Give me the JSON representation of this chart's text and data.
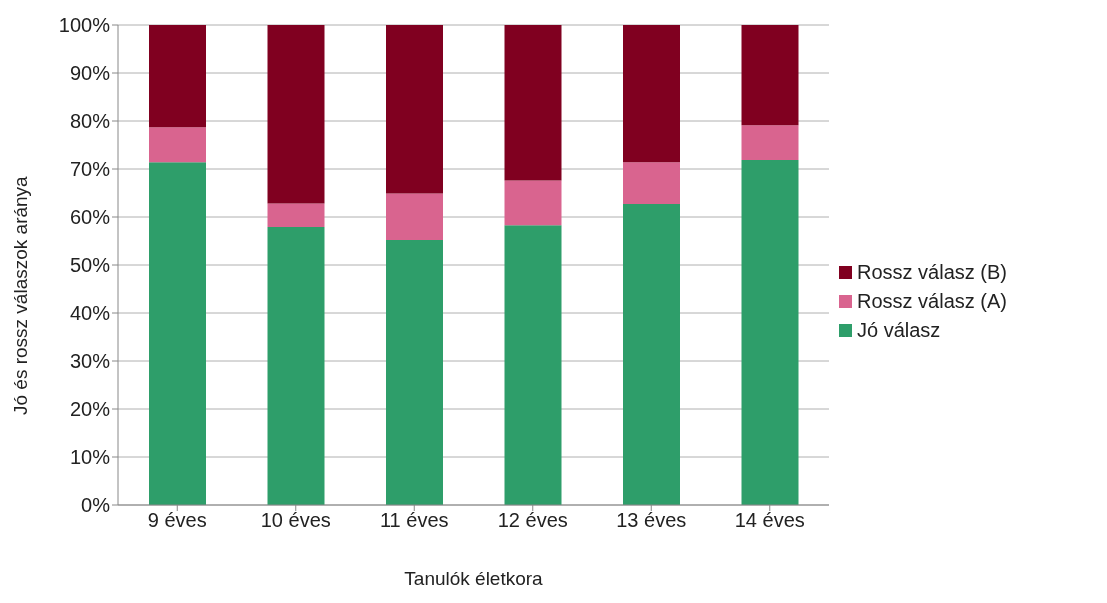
{
  "chart_data": {
    "type": "bar",
    "stacked": true,
    "xlabel": "Tanulók életkora",
    "ylabel": "Jó és rossz válaszok aránya",
    "categories": [
      "9 éves",
      "10 éves",
      "11 éves",
      "12 éves",
      "13 éves",
      "14 éves"
    ],
    "series": [
      {
        "name": "Jó válasz",
        "color": "#2e9e6a",
        "values": [
          71.4,
          57.9,
          55.2,
          58.3,
          62.7,
          71.9
        ]
      },
      {
        "name": "Rossz válasz (A)",
        "color": "#d9648f",
        "values": [
          7.3,
          4.9,
          9.7,
          9.3,
          8.7,
          7.2
        ]
      },
      {
        "name": "Rossz válasz (B)",
        "color": "#800020",
        "values": [
          21.3,
          37.2,
          35.1,
          32.4,
          28.6,
          20.9
        ]
      }
    ],
    "ylim": [
      0,
      100
    ],
    "yticks": [
      {
        "value": 0,
        "label": "0%"
      },
      {
        "value": 10,
        "label": "10%"
      },
      {
        "value": 20,
        "label": "20%"
      },
      {
        "value": 30,
        "label": "30%"
      },
      {
        "value": 40,
        "label": "40%"
      },
      {
        "value": 50,
        "label": "50%"
      },
      {
        "value": 60,
        "label": "60%"
      },
      {
        "value": 70,
        "label": "70%"
      },
      {
        "value": 80,
        "label": "80%"
      },
      {
        "value": 90,
        "label": "90%"
      },
      {
        "value": 100,
        "label": "100%"
      }
    ],
    "grid": "y",
    "legend": "right"
  }
}
